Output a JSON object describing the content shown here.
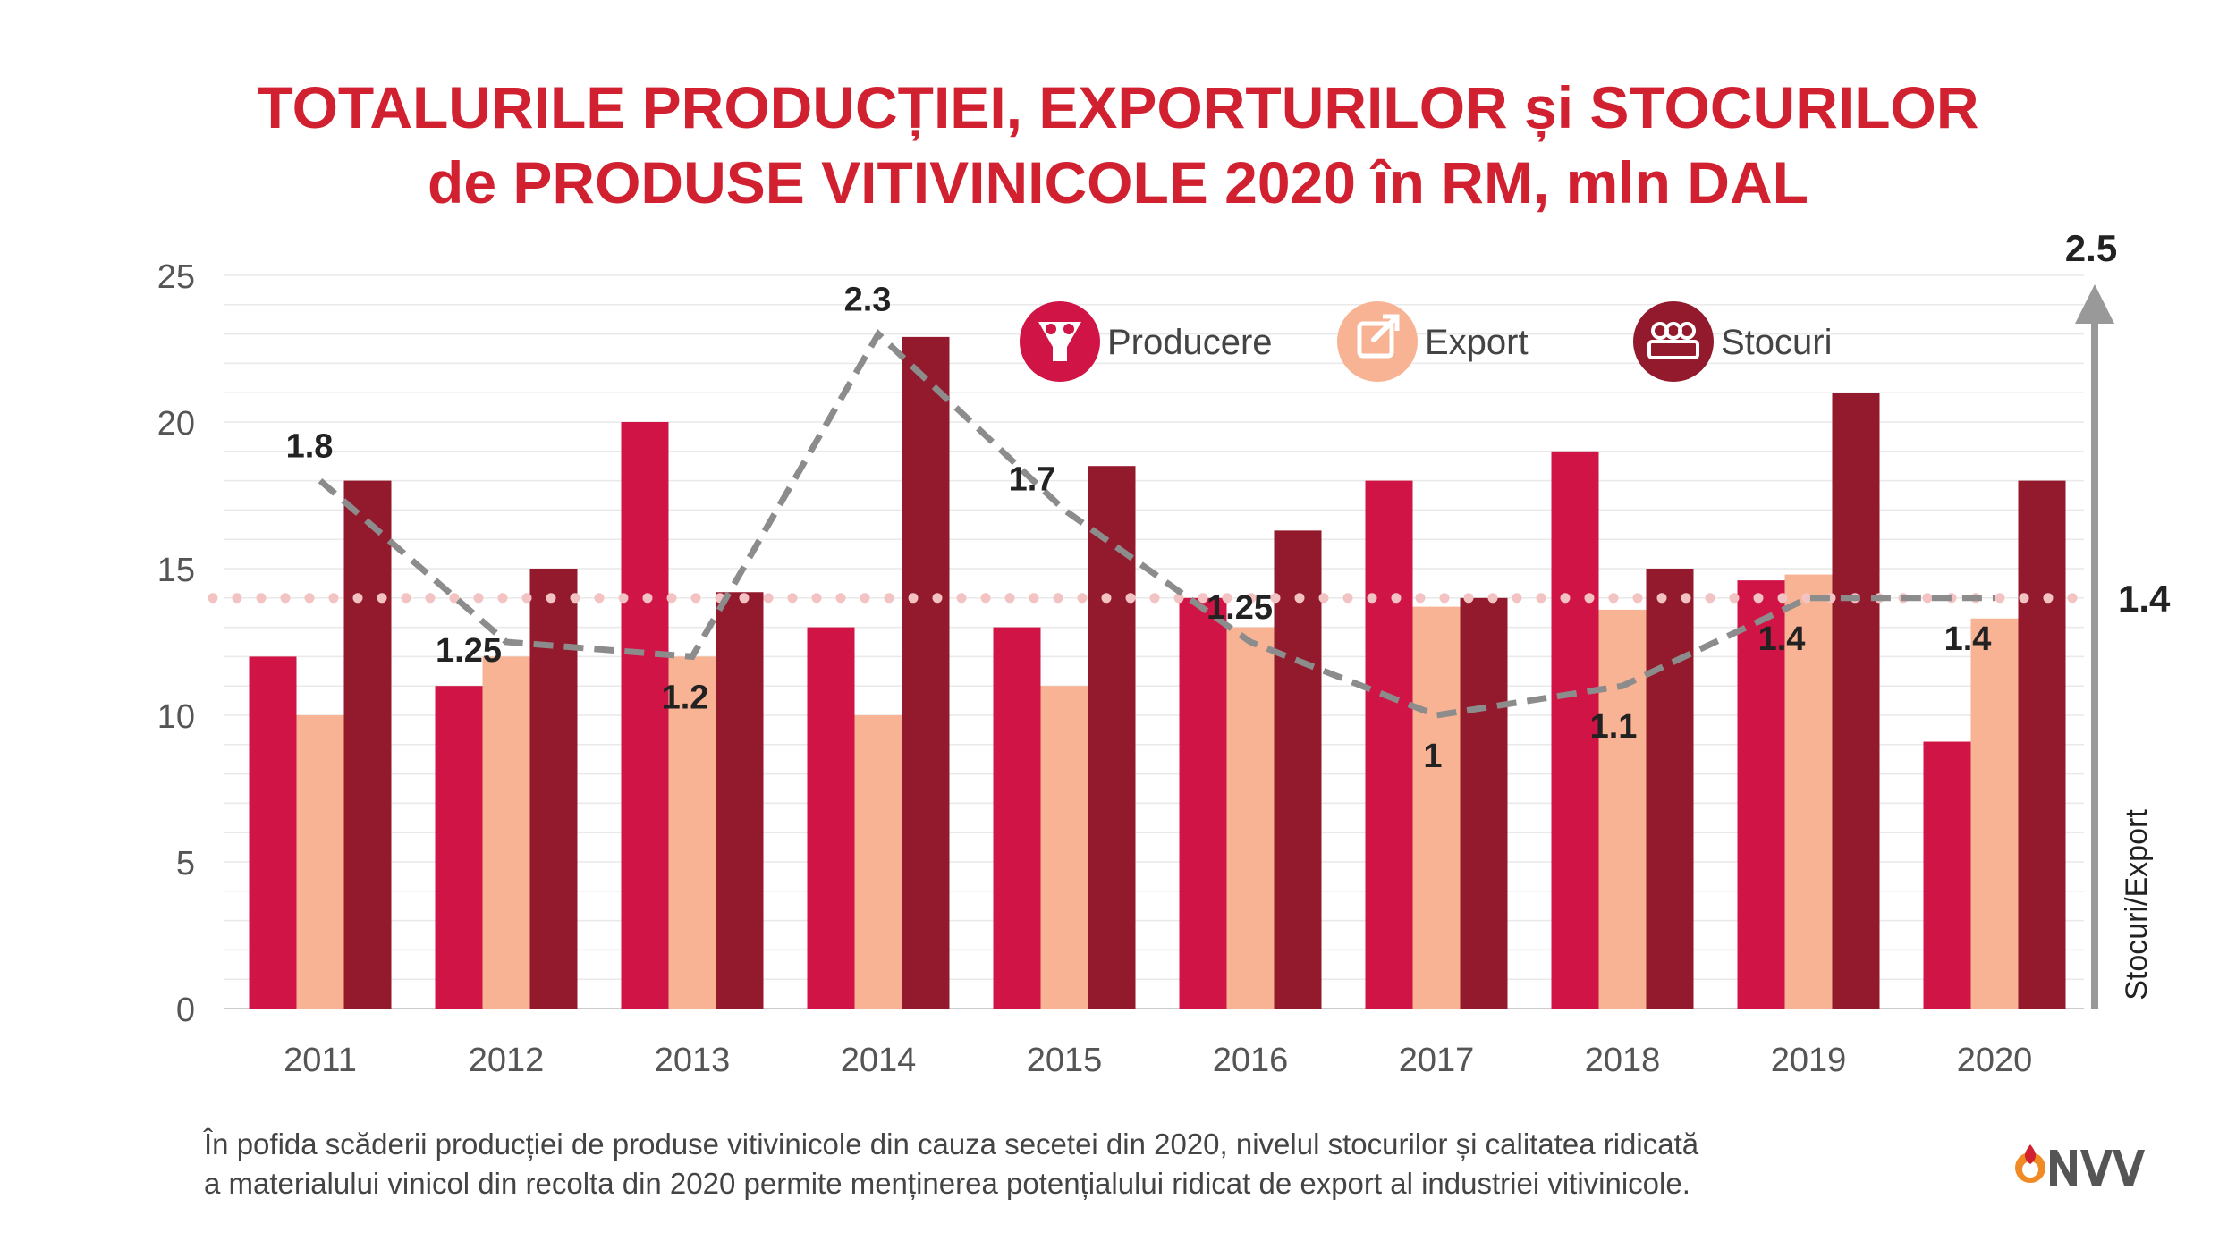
{
  "title_line1": "TOTALURILE PRODUCȚIEI, EXPORTURILOR și STOCURILOR",
  "title_line2": "de PRODUSE VITIVINICOLE 2020 în RM, mln DAL",
  "caption_line1": "În pofida scăderii producției de produse vitivinicole din cauza secetei din 2020, nivelul stocurilor și calitatea ridicată",
  "caption_line2": "a materialului vinicol din recolta din 2020 permite menținerea potențialului ridicat de export al industriei vitivinicole.",
  "logo_text": "NVV",
  "colors": {
    "title": "#d1202f",
    "producere": "#d01446",
    "export": "#f7b394",
    "stocuri": "#931a2c",
    "ratio_line": "#8c8c8c",
    "reference_line": "#f3c3c3",
    "axis_arrow": "#999999"
  },
  "legend_icons": {
    "producere": "funnel-icon",
    "export": "export-arrow-icon",
    "stocuri": "barrels-icon"
  },
  "chart_data": {
    "type": "bar",
    "categories": [
      "2011",
      "2012",
      "2013",
      "2014",
      "2015",
      "2016",
      "2017",
      "2018",
      "2019",
      "2020"
    ],
    "series": [
      {
        "name": "Producere",
        "values": [
          12,
          11,
          20,
          13,
          13,
          14,
          18,
          19,
          14.6,
          9.1
        ]
      },
      {
        "name": "Export",
        "values": [
          10,
          12,
          12,
          10,
          11,
          13,
          13.7,
          13.6,
          14.8,
          13.3
        ]
      },
      {
        "name": "Stocuri",
        "values": [
          18,
          15,
          14.2,
          22.9,
          18.5,
          16.3,
          14,
          15,
          21,
          18
        ]
      }
    ],
    "ylim": [
      0,
      25
    ],
    "yticks": [
      "0",
      "5",
      "10",
      "15",
      "20",
      "25"
    ],
    "grid": true,
    "legend_position": "top-center",
    "secondary_axis": {
      "label": "Stocuri/Export",
      "max_label": "2.5",
      "ylim": [
        0,
        2.5
      ]
    },
    "ratio_line": {
      "type": "line",
      "style": "dashed",
      "values": [
        1.8,
        1.25,
        1.2,
        2.3,
        1.7,
        1.25,
        1,
        1.1,
        1.4,
        1.4
      ],
      "labels": [
        "1.8",
        "1.25",
        "1.2",
        "2.3",
        "1.7",
        "1.25",
        "1",
        "1.1",
        "1.4",
        "1.4"
      ]
    },
    "reference_line": {
      "value": 1.4,
      "label": "1.4",
      "style": "dotted"
    }
  }
}
